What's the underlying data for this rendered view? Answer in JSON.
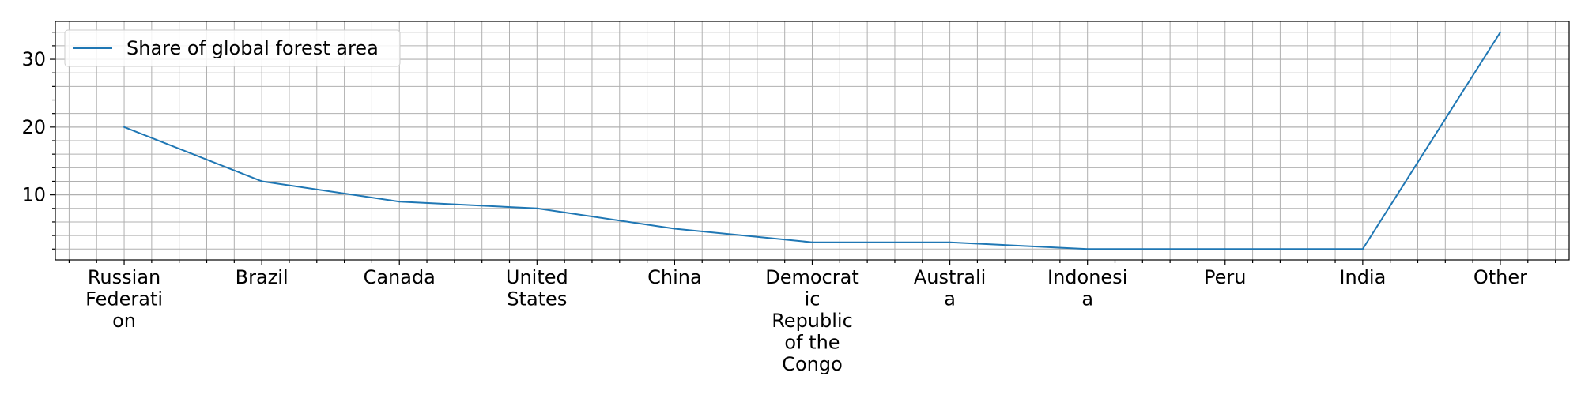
{
  "chart_data": {
    "type": "line",
    "title": "",
    "xlabel": "",
    "ylabel": "",
    "categories": [
      "Russian Federation",
      "Brazil",
      "Canada",
      "United States",
      "China",
      "Democratic Republic of the Congo",
      "Australia",
      "Indonesia",
      "Peru",
      "India",
      "Other"
    ],
    "category_label_lines": [
      [
        "Russian",
        "Federati",
        "on"
      ],
      [
        "Brazil"
      ],
      [
        "Canada"
      ],
      [
        "United",
        "States"
      ],
      [
        "China"
      ],
      [
        "Democrat",
        "ic",
        "Republic",
        "of the",
        "Congo"
      ],
      [
        "Australi",
        "a"
      ],
      [
        "Indonesi",
        "a"
      ],
      [
        "Peru"
      ],
      [
        "India"
      ],
      [
        "Other"
      ]
    ],
    "series": [
      {
        "name": "Share of global forest area",
        "values": [
          20,
          12,
          9,
          8,
          5,
          3,
          3,
          2,
          2,
          2,
          34
        ],
        "color": "#1f77b4"
      }
    ],
    "ylim": [
      0.4,
      35.6
    ],
    "yticks": [
      10,
      20,
      30
    ],
    "ytick_labels": [
      "10",
      "20",
      "30"
    ],
    "grid": true,
    "minor_grid": true,
    "legend_position": "upper-left"
  }
}
